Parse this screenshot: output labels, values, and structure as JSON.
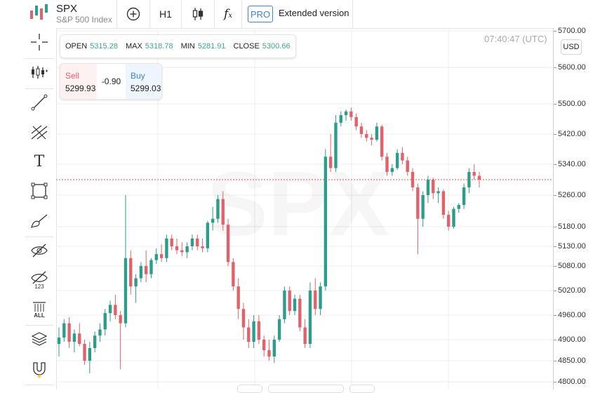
{
  "header": {
    "symbol": "SPX",
    "description": "S&P 500 Index",
    "timeframe": "H1",
    "pro_badge": "PRO",
    "extended_label": "Extended version",
    "icons": [
      "add-indicator-icon",
      "candlestick-type-icon",
      "formula-icon"
    ]
  },
  "sidebar": {
    "tools": [
      {
        "name": "crosshair-icon"
      },
      {
        "name": "indicators-icon"
      },
      {
        "name": "trend-line-icon"
      },
      {
        "name": "pitchfork-icon"
      },
      {
        "name": "text-tool-icon"
      },
      {
        "name": "rectangle-icon"
      },
      {
        "name": "brush-icon"
      },
      {
        "name": "hide-drawings-icon"
      },
      {
        "name": "hide-labels-icon"
      },
      {
        "name": "remove-all-icon"
      },
      {
        "name": "layers-icon"
      },
      {
        "name": "magnet-icon"
      }
    ],
    "remove_all_label": "ALL",
    "hide_labels_label": "123"
  },
  "ohlc": {
    "open_label": "OPEN",
    "open": "5315.28",
    "max_label": "MAX",
    "max": "5318.78",
    "min_label": "MIN",
    "min": "5281.91",
    "close_label": "CLOSE",
    "close": "5300.66"
  },
  "trade": {
    "sell_label": "Sell",
    "sell_price": "5299.93",
    "spread": "-0.90",
    "buy_label": "Buy",
    "buy_price": "5299.03"
  },
  "clock": "07:40:47 (UTC)",
  "currency": "USD",
  "watermark": "SPX",
  "colors": {
    "up": "#2e9c8a",
    "down": "#e2626b",
    "accent": "#3d83d4",
    "price_line": "#e05050"
  },
  "chart_data": {
    "type": "candlestick",
    "current_price": 5299.93,
    "y_ticks": [
      "5700.00",
      "5600.00",
      "5500.00",
      "5420.00",
      "5340.00",
      "5260.00",
      "5180.00",
      "5130.00",
      "5080.00",
      "5020.00",
      "4960.00",
      "4900.00",
      "4850.00",
      "4800.00"
    ],
    "ylim": [
      4790,
      5710
    ],
    "grid": true,
    "candles": [
      {
        "o": 4890,
        "h": 4930,
        "l": 4860,
        "c": 4905
      },
      {
        "o": 4905,
        "h": 4950,
        "l": 4895,
        "c": 4940
      },
      {
        "o": 4940,
        "h": 4955,
        "l": 4880,
        "c": 4895
      },
      {
        "o": 4895,
        "h": 4925,
        "l": 4870,
        "c": 4915
      },
      {
        "o": 4915,
        "h": 4940,
        "l": 4885,
        "c": 4890
      },
      {
        "o": 4890,
        "h": 4900,
        "l": 4840,
        "c": 4850
      },
      {
        "o": 4850,
        "h": 4895,
        "l": 4820,
        "c": 4880
      },
      {
        "o": 4880,
        "h": 4920,
        "l": 4870,
        "c": 4910
      },
      {
        "o": 4910,
        "h": 4940,
        "l": 4895,
        "c": 4925
      },
      {
        "o": 4925,
        "h": 4975,
        "l": 4910,
        "c": 4965
      },
      {
        "o": 4965,
        "h": 4995,
        "l": 4945,
        "c": 4985
      },
      {
        "o": 4985,
        "h": 5010,
        "l": 4950,
        "c": 4960
      },
      {
        "o": 4960,
        "h": 4970,
        "l": 4830,
        "c": 4940
      },
      {
        "o": 4940,
        "h": 5260,
        "l": 4930,
        "c": 5100
      },
      {
        "o": 5100,
        "h": 5120,
        "l": 5010,
        "c": 5030
      },
      {
        "o": 5030,
        "h": 5060,
        "l": 4990,
        "c": 5050
      },
      {
        "o": 5050,
        "h": 5090,
        "l": 5040,
        "c": 5080
      },
      {
        "o": 5080,
        "h": 5120,
        "l": 5040,
        "c": 5060
      },
      {
        "o": 5060,
        "h": 5100,
        "l": 5050,
        "c": 5095
      },
      {
        "o": 5095,
        "h": 5125,
        "l": 5085,
        "c": 5110
      },
      {
        "o": 5110,
        "h": 5135,
        "l": 5090,
        "c": 5100
      },
      {
        "o": 5100,
        "h": 5160,
        "l": 5090,
        "c": 5150
      },
      {
        "o": 5150,
        "h": 5160,
        "l": 5120,
        "c": 5130
      },
      {
        "o": 5130,
        "h": 5150,
        "l": 5110,
        "c": 5120
      },
      {
        "o": 5120,
        "h": 5140,
        "l": 5105,
        "c": 5115
      },
      {
        "o": 5115,
        "h": 5140,
        "l": 5100,
        "c": 5130
      },
      {
        "o": 5130,
        "h": 5160,
        "l": 5120,
        "c": 5150
      },
      {
        "o": 5150,
        "h": 5160,
        "l": 5120,
        "c": 5130
      },
      {
        "o": 5130,
        "h": 5150,
        "l": 5115,
        "c": 5125
      },
      {
        "o": 5125,
        "h": 5195,
        "l": 5115,
        "c": 5190
      },
      {
        "o": 5190,
        "h": 5230,
        "l": 5170,
        "c": 5200
      },
      {
        "o": 5200,
        "h": 5260,
        "l": 5190,
        "c": 5250
      },
      {
        "o": 5250,
        "h": 5270,
        "l": 5170,
        "c": 5185
      },
      {
        "o": 5185,
        "h": 5200,
        "l": 5080,
        "c": 5090
      },
      {
        "o": 5090,
        "h": 5100,
        "l": 5020,
        "c": 5030
      },
      {
        "o": 5030,
        "h": 5050,
        "l": 4950,
        "c": 4975
      },
      {
        "o": 4975,
        "h": 4990,
        "l": 4900,
        "c": 4930
      },
      {
        "o": 4930,
        "h": 4950,
        "l": 4880,
        "c": 4895
      },
      {
        "o": 4895,
        "h": 4960,
        "l": 4880,
        "c": 4945
      },
      {
        "o": 4945,
        "h": 4960,
        "l": 4890,
        "c": 4900
      },
      {
        "o": 4900,
        "h": 4910,
        "l": 4860,
        "c": 4875
      },
      {
        "o": 4875,
        "h": 4900,
        "l": 4850,
        "c": 4860
      },
      {
        "o": 4860,
        "h": 4910,
        "l": 4845,
        "c": 4900
      },
      {
        "o": 4900,
        "h": 4960,
        "l": 4895,
        "c": 4950
      },
      {
        "o": 4950,
        "h": 5030,
        "l": 4940,
        "c": 5020
      },
      {
        "o": 5020,
        "h": 5030,
        "l": 4960,
        "c": 4970
      },
      {
        "o": 4970,
        "h": 5010,
        "l": 4960,
        "c": 5000
      },
      {
        "o": 5000,
        "h": 5010,
        "l": 4920,
        "c": 4930
      },
      {
        "o": 4930,
        "h": 4950,
        "l": 4880,
        "c": 4890
      },
      {
        "o": 4890,
        "h": 5040,
        "l": 4880,
        "c": 5020
      },
      {
        "o": 5020,
        "h": 5050,
        "l": 4960,
        "c": 4975
      },
      {
        "o": 4975,
        "h": 5040,
        "l": 4960,
        "c": 5030
      },
      {
        "o": 5030,
        "h": 5380,
        "l": 5020,
        "c": 5360
      },
      {
        "o": 5360,
        "h": 5420,
        "l": 5320,
        "c": 5330
      },
      {
        "o": 5330,
        "h": 5470,
        "l": 5320,
        "c": 5450
      },
      {
        "o": 5450,
        "h": 5480,
        "l": 5440,
        "c": 5470
      },
      {
        "o": 5470,
        "h": 5485,
        "l": 5455,
        "c": 5480
      },
      {
        "o": 5480,
        "h": 5490,
        "l": 5455,
        "c": 5465
      },
      {
        "o": 5465,
        "h": 5475,
        "l": 5430,
        "c": 5440
      },
      {
        "o": 5440,
        "h": 5450,
        "l": 5410,
        "c": 5420
      },
      {
        "o": 5420,
        "h": 5430,
        "l": 5400,
        "c": 5410
      },
      {
        "o": 5410,
        "h": 5420,
        "l": 5390,
        "c": 5405
      },
      {
        "o": 5405,
        "h": 5450,
        "l": 5400,
        "c": 5440
      },
      {
        "o": 5440,
        "h": 5445,
        "l": 5350,
        "c": 5360
      },
      {
        "o": 5360,
        "h": 5370,
        "l": 5310,
        "c": 5320
      },
      {
        "o": 5320,
        "h": 5340,
        "l": 5310,
        "c": 5330
      },
      {
        "o": 5330,
        "h": 5380,
        "l": 5325,
        "c": 5370
      },
      {
        "o": 5370,
        "h": 5385,
        "l": 5340,
        "c": 5350
      },
      {
        "o": 5350,
        "h": 5360,
        "l": 5310,
        "c": 5320
      },
      {
        "o": 5320,
        "h": 5330,
        "l": 5270,
        "c": 5280
      },
      {
        "o": 5280,
        "h": 5290,
        "l": 5110,
        "c": 5200
      },
      {
        "o": 5200,
        "h": 5270,
        "l": 5180,
        "c": 5260
      },
      {
        "o": 5260,
        "h": 5310,
        "l": 5240,
        "c": 5300
      },
      {
        "o": 5300,
        "h": 5305,
        "l": 5250,
        "c": 5265
      },
      {
        "o": 5265,
        "h": 5280,
        "l": 5240,
        "c": 5270
      },
      {
        "o": 5270,
        "h": 5275,
        "l": 5200,
        "c": 5210
      },
      {
        "o": 5210,
        "h": 5220,
        "l": 5170,
        "c": 5180
      },
      {
        "o": 5180,
        "h": 5230,
        "l": 5175,
        "c": 5225
      },
      {
        "o": 5225,
        "h": 5240,
        "l": 5215,
        "c": 5235
      },
      {
        "o": 5235,
        "h": 5290,
        "l": 5225,
        "c": 5280
      },
      {
        "o": 5280,
        "h": 5330,
        "l": 5265,
        "c": 5320
      },
      {
        "o": 5320,
        "h": 5340,
        "l": 5300,
        "c": 5310
      },
      {
        "o": 5310,
        "h": 5320,
        "l": 5280,
        "c": 5300
      }
    ]
  }
}
